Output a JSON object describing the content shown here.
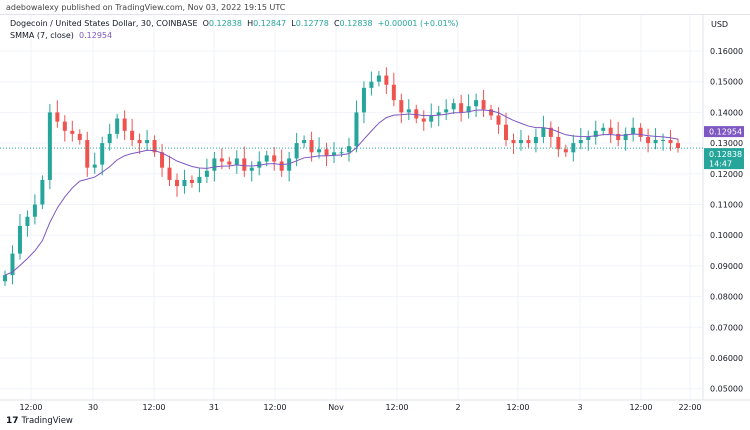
{
  "header": {
    "published": "adebowalexy published on TradingView.com, Nov 03, 2022 19:15 UTC"
  },
  "legend": {
    "symbol": "Dogecoin / United States Dollar, 30, COINBASE",
    "o_label": "O",
    "o": "0.12838",
    "h_label": "H",
    "h": "0.12847",
    "l_label": "L",
    "l": "0.12778",
    "c_label": "C",
    "c": "0.12838",
    "change": "+0.00001 (+0.01%)",
    "indicator": "SMMA (7, close)",
    "indicator_value": "0.12954"
  },
  "axis": {
    "currency": "USD",
    "price_ticks": [
      "0.16000",
      "0.15000",
      "0.14000",
      "0.13000",
      "0.12000",
      "0.11000",
      "0.10000",
      "0.09000",
      "0.08000",
      "0.07000",
      "0.06000",
      "0.05000"
    ],
    "time_ticks": [
      "12:00",
      "30",
      "12:00",
      "31",
      "12:00",
      "Nov",
      "12:00",
      "2",
      "12:00",
      "3",
      "12:00",
      "22:00"
    ],
    "countdown": "14:47"
  },
  "footer": {
    "brand": "TradingView"
  },
  "colors": {
    "up": "#26a69a",
    "down": "#ef5350",
    "smma": "#7e57c2"
  },
  "chart_data": {
    "type": "candlestick",
    "interval": "30",
    "ylim": [
      0.045,
      0.165
    ],
    "last_price": 0.12838,
    "smma_period": 7,
    "closes": [
      0.087,
      0.094,
      0.103,
      0.106,
      0.11,
      0.118,
      0.14,
      0.137,
      0.134,
      0.133,
      0.131,
      0.122,
      0.123,
      0.13,
      0.133,
      0.138,
      0.134,
      0.131,
      0.13,
      0.131,
      0.127,
      0.122,
      0.118,
      0.116,
      0.118,
      0.117,
      0.119,
      0.121,
      0.125,
      0.124,
      0.123,
      0.125,
      0.121,
      0.122,
      0.124,
      0.126,
      0.124,
      0.121,
      0.125,
      0.13,
      0.131,
      0.127,
      0.128,
      0.126,
      0.127,
      0.127,
      0.129,
      0.14,
      0.148,
      0.15,
      0.152,
      0.149,
      0.144,
      0.14,
      0.141,
      0.138,
      0.137,
      0.139,
      0.14,
      0.141,
      0.143,
      0.14,
      0.142,
      0.144,
      0.141,
      0.139,
      0.136,
      0.131,
      0.13,
      0.131,
      0.13,
      0.132,
      0.135,
      0.132,
      0.128,
      0.127,
      0.13,
      0.131,
      0.132,
      0.134,
      0.135,
      0.133,
      0.131,
      0.133,
      0.135,
      0.132,
      0.13,
      0.131,
      0.131,
      0.13,
      0.12838
    ]
  }
}
